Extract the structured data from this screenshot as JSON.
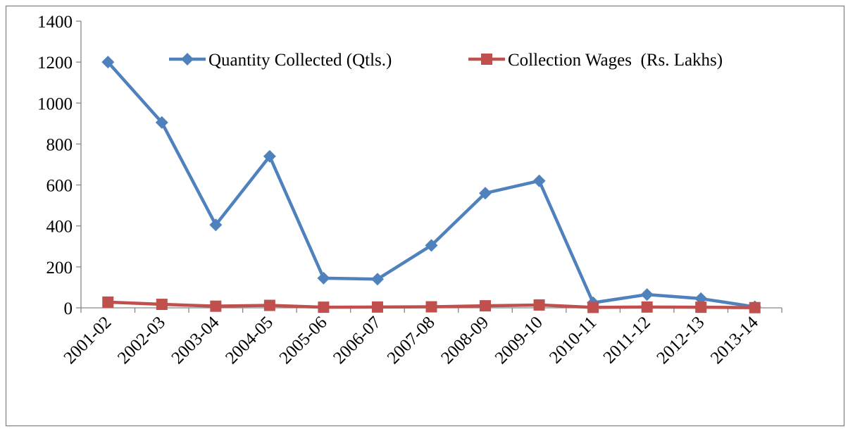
{
  "chart_data": {
    "type": "line",
    "categories": [
      "2001-02",
      "2002-03",
      "2003-04",
      "2004-05",
      "2005-06",
      "2006-07",
      "2007-08",
      "2008-09",
      "2009-10",
      "2010-11",
      "2011-12",
      "2012-13",
      "2013-14"
    ],
    "series": [
      {
        "name": "Quantity Collected (Qtls.)",
        "color": "#4f81bd",
        "marker": "diamond",
        "values": [
          1200,
          905,
          405,
          740,
          145,
          140,
          305,
          560,
          620,
          25,
          65,
          45,
          5
        ]
      },
      {
        "name": "Collection Wages  (Rs. Lakhs)",
        "color": "#c0504d",
        "marker": "square",
        "values": [
          28,
          17,
          8,
          12,
          3,
          4,
          5,
          10,
          14,
          2,
          4,
          3,
          1
        ]
      }
    ],
    "ylim": [
      0,
      1400
    ],
    "yticks": [
      0,
      200,
      400,
      600,
      800,
      1000,
      1200,
      1400
    ]
  }
}
